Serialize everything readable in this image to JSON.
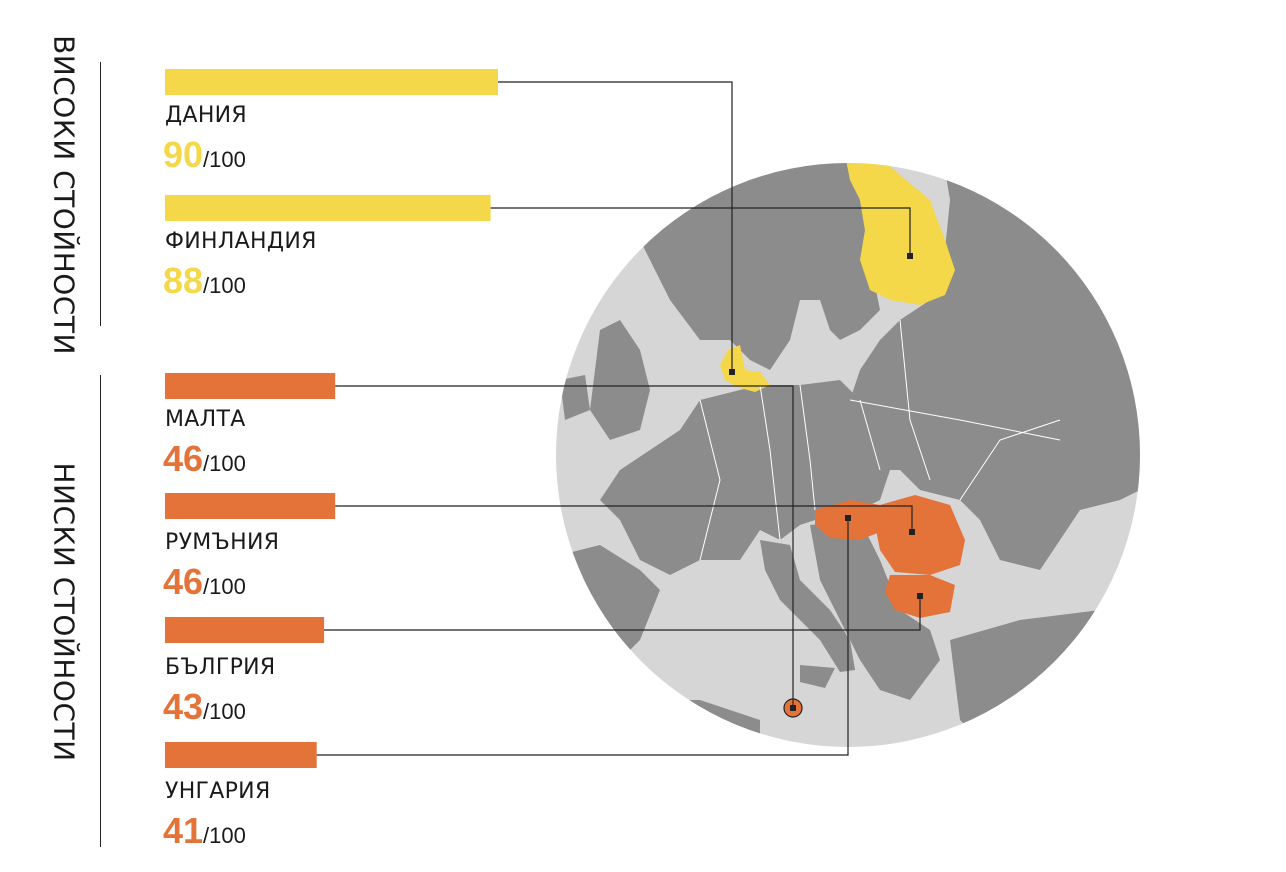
{
  "chart_data": {
    "type": "bar",
    "max_value": 100,
    "score_suffix": "/100",
    "groups": [
      {
        "label": "ВИСОКИ СТОЙНОСТИ",
        "color": "#f5d74a"
      },
      {
        "label": "НИСКИ СТОЙНОСТИ",
        "color": "#e4733a"
      }
    ],
    "categories": [
      "ДАНИЯ",
      "ФИНЛАНДИЯ",
      "МАЛТА",
      "РУМЪНИЯ",
      "БЪЛГРИЯ",
      "УНГАРИЯ"
    ],
    "values": [
      90,
      88,
      46,
      46,
      43,
      41
    ],
    "group_of": [
      0,
      0,
      1,
      1,
      1,
      1
    ]
  },
  "colors": {
    "high": "#f5d74a",
    "low": "#e4733a",
    "map_land": "#8c8c8c",
    "map_sea": "#d6d6d6",
    "border_line": "#ffffff",
    "connector": "#222222"
  }
}
